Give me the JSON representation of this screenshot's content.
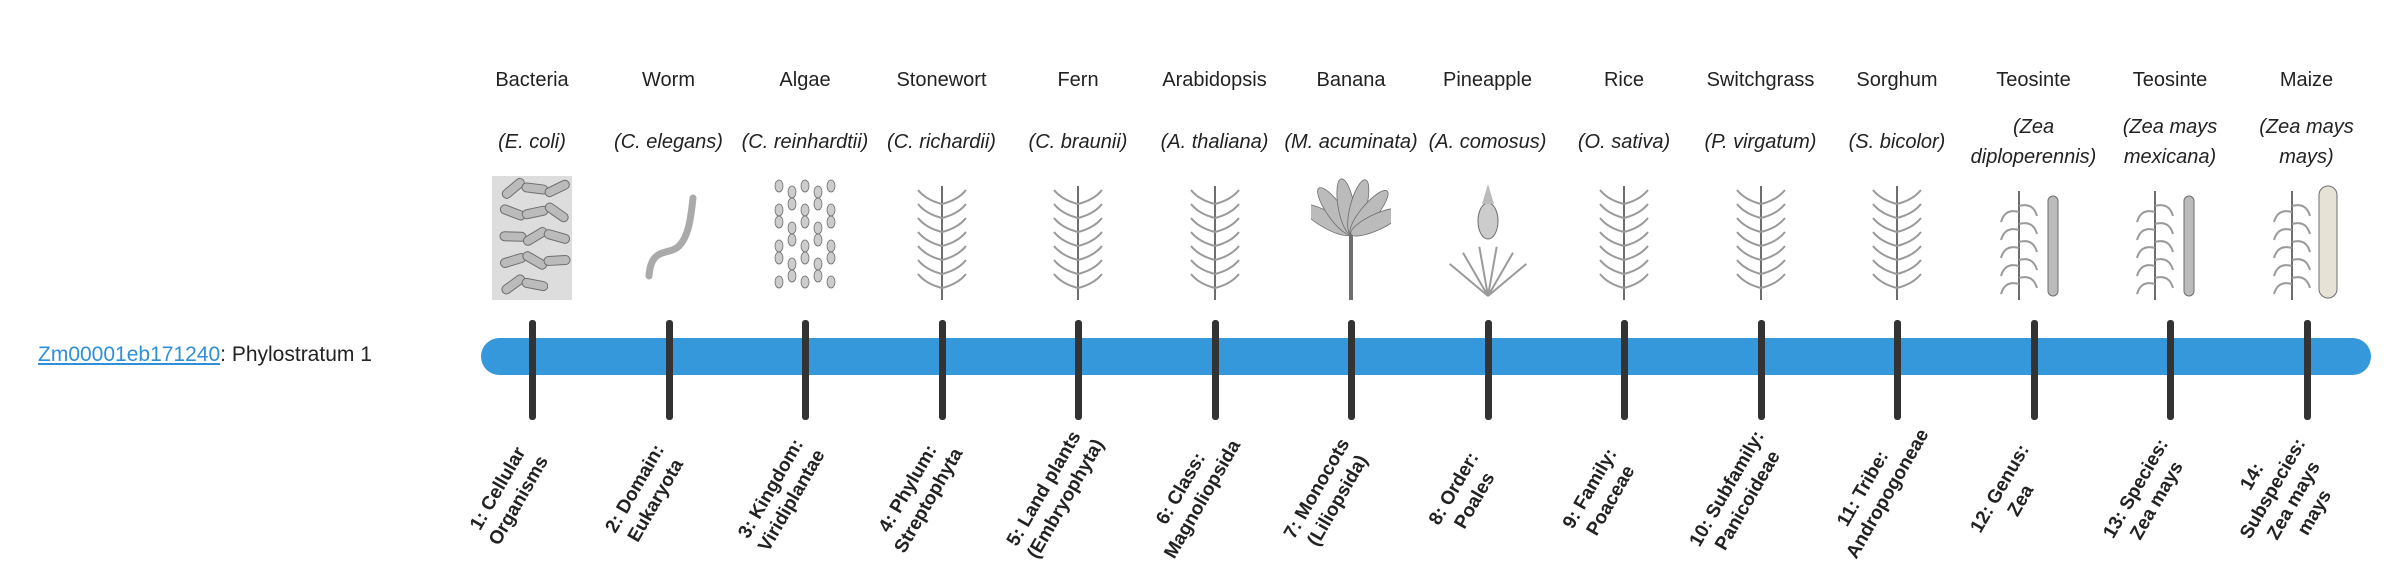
{
  "gene": {
    "id": "Zm00001eb171240",
    "suffix": ": Phylostratum 1"
  },
  "colors": {
    "bar": "#3498db",
    "tick": "#333333",
    "link": "#2f8fd8"
  },
  "strata": [
    {
      "common": "Bacteria",
      "scientific": "(E. coli)",
      "rank": "1: Cellular Organisms",
      "icon": "bacteria-icon"
    },
    {
      "common": "Worm",
      "scientific": "(C. elegans)",
      "rank": "2: Domain: Eukaryota",
      "icon": "worm-icon"
    },
    {
      "common": "Algae",
      "scientific": "(C. reinhardtii)",
      "rank": "3: Kingdom: Viridiplantae",
      "icon": "algae-icon"
    },
    {
      "common": "Stonewort",
      "scientific": "(C. richardii)",
      "rank": "4: Phylum: Streptophyta",
      "icon": "stonewort-icon"
    },
    {
      "common": "Fern",
      "scientific": "(C. braunii)",
      "rank": "5: Land plants (Embryophyta)",
      "icon": "fern-icon"
    },
    {
      "common": "Arabidopsis",
      "scientific": "(A. thaliana)",
      "rank": "6: Class: Magnoliopsida",
      "icon": "arabidopsis-icon"
    },
    {
      "common": "Banana",
      "scientific": "(M. acuminata)",
      "rank": "7: Monocots (Liliopsida)",
      "icon": "banana-icon"
    },
    {
      "common": "Pineapple",
      "scientific": "(A. comosus)",
      "rank": "8: Order: Poales",
      "icon": "pineapple-icon"
    },
    {
      "common": "Rice",
      "scientific": "(O. sativa)",
      "rank": "9: Family: Poaceae",
      "icon": "rice-icon"
    },
    {
      "common": "Switchgrass",
      "scientific": "(P. virgatum)",
      "rank": "10: Subfamily: Panicoideae",
      "icon": "switchgrass-icon"
    },
    {
      "common": "Sorghum",
      "scientific": "(S. bicolor)",
      "rank": "11: Tribe: Andropogoneae",
      "icon": "sorghum-icon"
    },
    {
      "common": "Teosinte",
      "scientific": "(Zea diploperennis)",
      "rank": "12: Genus: Zea",
      "icon": "teosinte-icon"
    },
    {
      "common": "Teosinte",
      "scientific": "(Zea mays mexicana)",
      "rank": "13: Species: Zea mays",
      "icon": "teosinte-icon"
    },
    {
      "common": "Maize",
      "scientific": "(Zea mays mays)",
      "rank": "14: Subspecies: Zea mays mays",
      "icon": "maize-icon"
    }
  ]
}
